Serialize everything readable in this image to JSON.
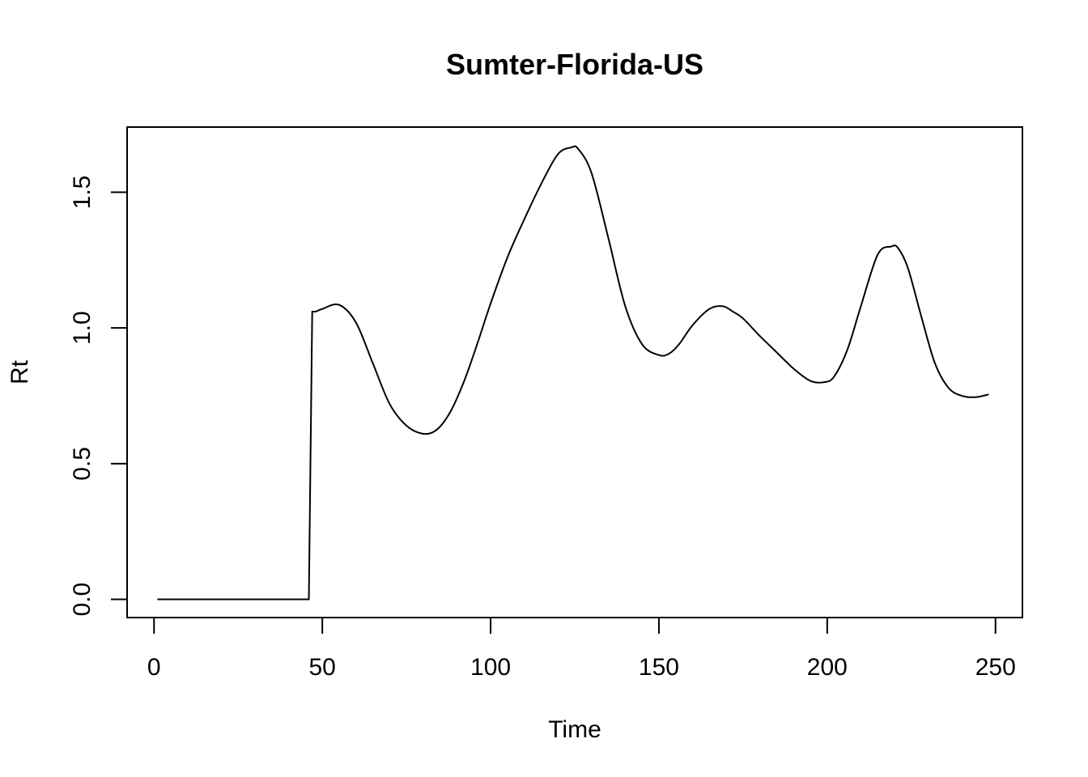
{
  "chart_data": {
    "type": "line",
    "title": "Sumter-Florida-US",
    "xlabel": "Time",
    "ylabel": "Rt",
    "xlim": [
      -8,
      258
    ],
    "ylim": [
      -0.067,
      1.74
    ],
    "xticks": [
      0,
      50,
      100,
      150,
      200,
      250
    ],
    "yticks": [
      0.0,
      0.5,
      1.0,
      1.5
    ],
    "xtick_labels": [
      "0",
      "50",
      "100",
      "150",
      "200",
      "250"
    ],
    "ytick_labels": [
      "0.0",
      "0.5",
      "1.0",
      "1.5"
    ],
    "grid": false,
    "legend": "none",
    "line_color": "#000000",
    "series": [
      {
        "x": [
          1,
          46,
          47,
          48,
          50,
          55,
          60,
          65,
          70,
          75,
          80,
          84,
          88,
          92,
          96,
          100,
          105,
          110,
          115,
          120,
          124,
          126,
          130,
          135,
          140,
          145,
          150,
          153,
          156,
          160,
          165,
          169,
          172,
          175,
          180,
          185,
          190,
          195,
          199,
          202,
          206,
          210,
          215,
          219,
          221,
          224,
          228,
          232,
          236,
          240,
          244,
          248
        ],
        "y": [
          0.0,
          0.0,
          1.06,
          1.06,
          1.07,
          1.085,
          1.02,
          0.87,
          0.72,
          0.64,
          0.61,
          0.625,
          0.69,
          0.8,
          0.94,
          1.09,
          1.26,
          1.4,
          1.53,
          1.64,
          1.665,
          1.66,
          1.57,
          1.33,
          1.08,
          0.94,
          0.9,
          0.905,
          0.94,
          1.01,
          1.07,
          1.08,
          1.06,
          1.035,
          0.97,
          0.91,
          0.85,
          0.805,
          0.8,
          0.82,
          0.92,
          1.08,
          1.27,
          1.3,
          1.295,
          1.22,
          1.04,
          0.87,
          0.78,
          0.75,
          0.745,
          0.755
        ]
      }
    ]
  }
}
